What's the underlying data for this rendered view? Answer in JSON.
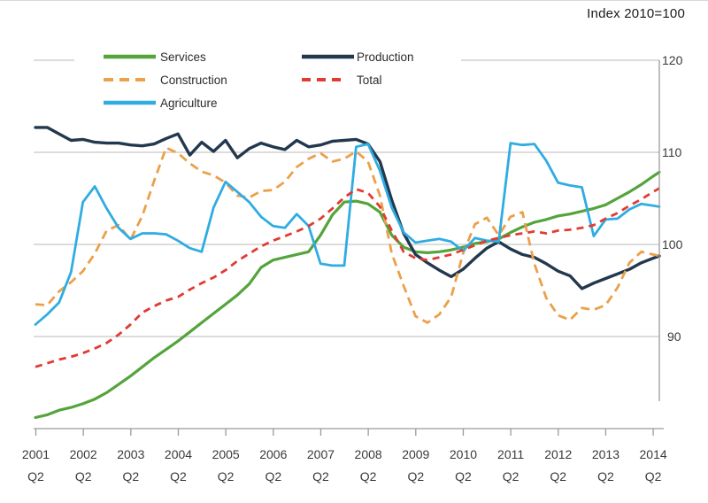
{
  "chart": {
    "title": "Index 2010=100"
  },
  "chart_data": {
    "type": "line",
    "title": "Index 2010=100",
    "x_unit": "quarter",
    "x_start": "2001 Q2",
    "x_end": "2014 Q2",
    "points_per_series": 53,
    "x_tick_years": [
      "2001",
      "2002",
      "2003",
      "2004",
      "2005",
      "2006",
      "2007",
      "2008",
      "2009",
      "2010",
      "2011",
      "2012",
      "2013",
      "2014"
    ],
    "x_tick_quarter_label": "Q2",
    "y_axis": {
      "min": 80,
      "max": 120,
      "gridlines": [
        120,
        110,
        100,
        90
      ],
      "tick_labels": [
        "120",
        "110",
        "100",
        "90"
      ],
      "side": "right"
    },
    "grid": true,
    "legend_position": "top-left-inside",
    "colors": {
      "grid": "#c8c8c8",
      "axis": "#9a9a9a",
      "tick_text": "#3a3a3a",
      "title_text": "#1a1a1a",
      "legend_text": "#2b2b2b",
      "background": "#ffffff"
    },
    "series": [
      {
        "name": "Services",
        "color": "#54a43c",
        "style": "solid",
        "values": [
          81.2,
          81.5,
          82.0,
          82.3,
          82.7,
          83.2,
          83.9,
          84.8,
          85.7,
          86.7,
          87.7,
          88.6,
          89.5,
          90.5,
          91.5,
          92.5,
          93.5,
          94.5,
          95.7,
          97.5,
          98.3,
          98.6,
          98.9,
          99.2,
          101.0,
          103.2,
          104.6,
          104.7,
          104.4,
          103.5,
          101.0,
          99.7,
          99.2,
          99.1,
          99.2,
          99.4,
          99.7,
          100.1,
          100.3,
          100.6,
          101.3,
          101.9,
          102.4,
          102.7,
          103.1,
          103.3,
          103.6,
          103.9,
          104.3,
          105.0,
          105.7,
          106.5,
          107.4
        ]
      },
      {
        "name": "Production",
        "color": "#22384e",
        "style": "solid",
        "values": [
          112.7,
          112.7,
          112.0,
          111.3,
          111.4,
          111.1,
          111.0,
          111.0,
          110.8,
          110.7,
          110.9,
          111.5,
          112.0,
          109.7,
          111.1,
          110.1,
          111.3,
          109.4,
          110.4,
          111.0,
          110.6,
          110.3,
          111.3,
          110.6,
          110.8,
          111.2,
          111.3,
          111.4,
          110.9,
          109.0,
          104.8,
          101.2,
          98.9,
          98.0,
          97.2,
          96.5,
          97.3,
          98.5,
          99.6,
          100.3,
          99.5,
          98.9,
          98.6,
          97.9,
          97.1,
          96.6,
          95.2,
          95.8,
          96.3,
          96.8,
          97.3,
          98.0,
          98.5
        ]
      },
      {
        "name": "Construction",
        "color": "#eba04a",
        "style": "dashed",
        "values": [
          93.5,
          93.4,
          94.9,
          95.9,
          97.1,
          99.0,
          101.5,
          102.1,
          100.5,
          103.1,
          106.9,
          110.5,
          109.9,
          108.8,
          107.9,
          107.5,
          106.7,
          105.3,
          105.1,
          105.8,
          105.9,
          106.8,
          108.4,
          109.3,
          109.9,
          109.0,
          109.3,
          110.1,
          109.0,
          105.3,
          99.0,
          95.5,
          92.2,
          91.5,
          92.4,
          94.3,
          99.0,
          102.2,
          102.9,
          101.0,
          103.0,
          103.5,
          97.9,
          94.2,
          92.3,
          91.8,
          93.1,
          92.9,
          93.4,
          95.3,
          98.0,
          99.2,
          98.9
        ]
      },
      {
        "name": "Total",
        "color": "#e13b32",
        "style": "dashed",
        "values": [
          86.7,
          87.1,
          87.5,
          87.8,
          88.2,
          88.7,
          89.3,
          90.2,
          91.3,
          92.6,
          93.3,
          93.9,
          94.3,
          95.1,
          95.8,
          96.4,
          97.2,
          98.2,
          99.0,
          99.8,
          100.4,
          100.9,
          101.4,
          102.0,
          102.8,
          103.9,
          105.1,
          106.0,
          105.6,
          104.1,
          101.5,
          99.2,
          98.5,
          98.3,
          98.6,
          98.9,
          99.4,
          99.9,
          100.4,
          100.7,
          101.0,
          101.2,
          101.4,
          101.2,
          101.5,
          101.6,
          101.8,
          102.1,
          102.8,
          103.4,
          104.2,
          104.9,
          105.7
        ]
      },
      {
        "name": "Agriculture",
        "color": "#2face2",
        "style": "solid",
        "values": [
          91.3,
          92.4,
          93.7,
          97.0,
          104.6,
          106.3,
          103.9,
          101.8,
          100.6,
          101.2,
          101.2,
          101.1,
          100.4,
          99.6,
          99.2,
          104.0,
          106.8,
          105.7,
          104.6,
          103.0,
          102.0,
          101.8,
          103.3,
          102.0,
          97.9,
          97.7,
          97.7,
          110.6,
          110.9,
          108.0,
          104.0,
          101.3,
          100.2,
          100.4,
          100.6,
          100.3,
          99.3,
          100.7,
          100.4,
          100.3,
          111.0,
          110.8,
          110.9,
          109.1,
          106.7,
          106.4,
          106.2,
          100.9,
          102.7,
          102.8,
          103.8,
          104.4,
          104.2
        ]
      }
    ]
  }
}
